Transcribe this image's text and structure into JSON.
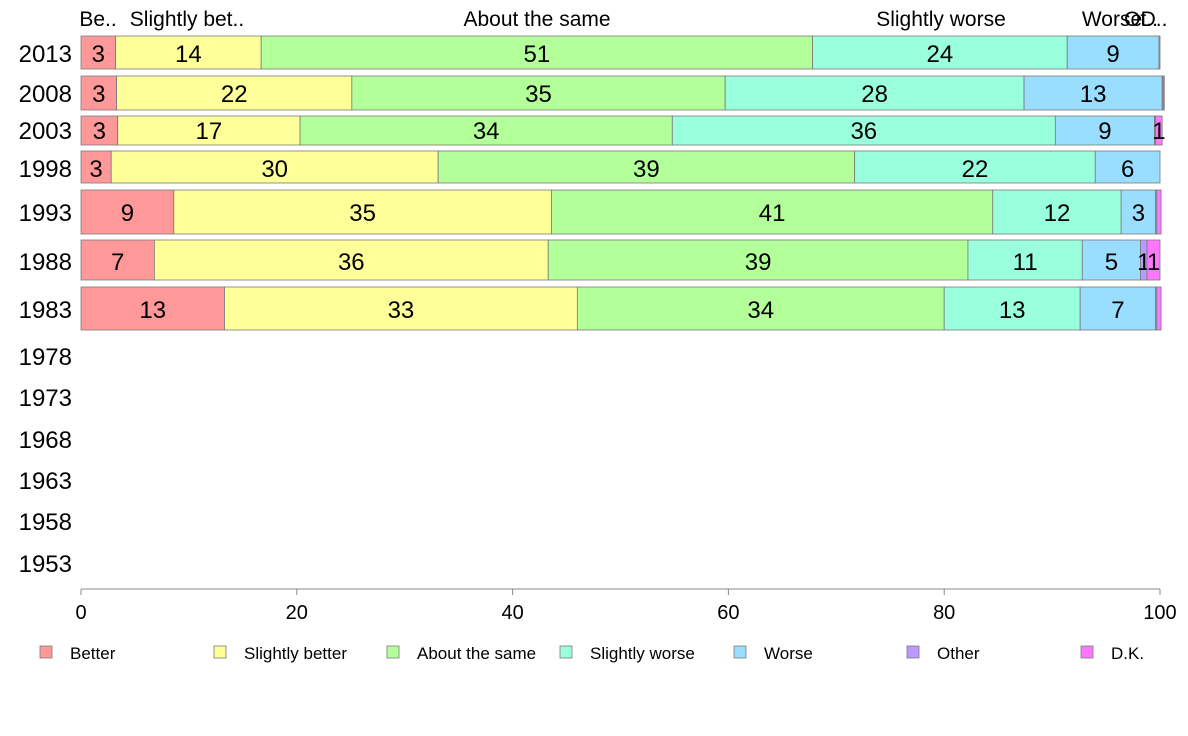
{
  "chart_data": {
    "type": "bar",
    "orientation": "horizontal",
    "stacked": true,
    "categories": [
      "2013",
      "2008",
      "2003",
      "1998",
      "1993",
      "1988",
      "1983",
      "1978",
      "1973",
      "1968",
      "1963",
      "1958",
      "1953"
    ],
    "xlim": [
      0,
      100
    ],
    "xticks": [
      0,
      20,
      40,
      60,
      80,
      100
    ],
    "grid": false,
    "legend_position": "bottom",
    "column_headers": [
      "Be..",
      "Slightly bet..",
      "About the same",
      "Slightly worse",
      "Worse",
      "Ot..",
      "D.."
    ],
    "series": [
      {
        "name": "Better",
        "color": "#ff9999",
        "values": [
          3.2,
          3.3,
          3.4,
          2.8,
          8.6,
          6.8,
          13.3,
          null,
          null,
          null,
          null,
          null,
          null
        ],
        "labels": [
          "3",
          "3",
          "3",
          "3",
          "9",
          "7",
          "13",
          "",
          "",
          "",
          "",
          "",
          ""
        ]
      },
      {
        "name": "Slightly better",
        "color": "#ffff99",
        "values": [
          13.5,
          21.8,
          16.9,
          30.3,
          35.0,
          36.5,
          32.7,
          null,
          null,
          null,
          null,
          null,
          null
        ],
        "labels": [
          "14",
          "22",
          "17",
          "30",
          "35",
          "36",
          "33",
          "",
          "",
          "",
          "",
          "",
          ""
        ]
      },
      {
        "name": "About the same",
        "color": "#b3ff99",
        "values": [
          51.1,
          34.6,
          34.5,
          38.6,
          40.9,
          38.9,
          34.0,
          null,
          null,
          null,
          null,
          null,
          null
        ],
        "labels": [
          "51",
          "35",
          "34",
          "39",
          "41",
          "39",
          "34",
          "",
          "",
          "",
          "",
          "",
          ""
        ]
      },
      {
        "name": "Slightly worse",
        "color": "#99ffdd",
        "values": [
          23.6,
          27.7,
          35.5,
          22.3,
          11.9,
          10.6,
          12.6,
          null,
          null,
          null,
          null,
          null,
          null
        ],
        "labels": [
          "24",
          "28",
          "36",
          "22",
          "12",
          "11",
          "13",
          "",
          "",
          "",
          "",
          "",
          ""
        ]
      },
      {
        "name": "Worse",
        "color": "#99ddff",
        "values": [
          8.5,
          12.8,
          9.2,
          6.0,
          3.2,
          5.4,
          7.0,
          null,
          null,
          null,
          null,
          null,
          null
        ],
        "labels": [
          "9",
          "13",
          "9",
          "6",
          "3",
          "5",
          "7",
          "",
          "",
          "",
          "",
          "",
          ""
        ]
      },
      {
        "name": "Other",
        "color": "#bb99ff",
        "values": [
          0.1,
          0.1,
          0.1,
          0.0,
          0.1,
          0.6,
          0.1,
          null,
          null,
          null,
          null,
          null,
          null
        ],
        "labels": [
          "",
          "",
          "",
          "",
          "",
          "1",
          "",
          "",
          "",
          "",
          "",
          "",
          ""
        ]
      },
      {
        "name": "D.K.",
        "color": "#ff77ff",
        "values": [
          0.0,
          0.1,
          0.6,
          0.0,
          0.4,
          1.2,
          0.4,
          null,
          null,
          null,
          null,
          null,
          null
        ],
        "labels": [
          "",
          "",
          "1",
          "",
          "",
          "1",
          "",
          "",
          "",
          "",
          "",
          "",
          ""
        ]
      }
    ]
  }
}
